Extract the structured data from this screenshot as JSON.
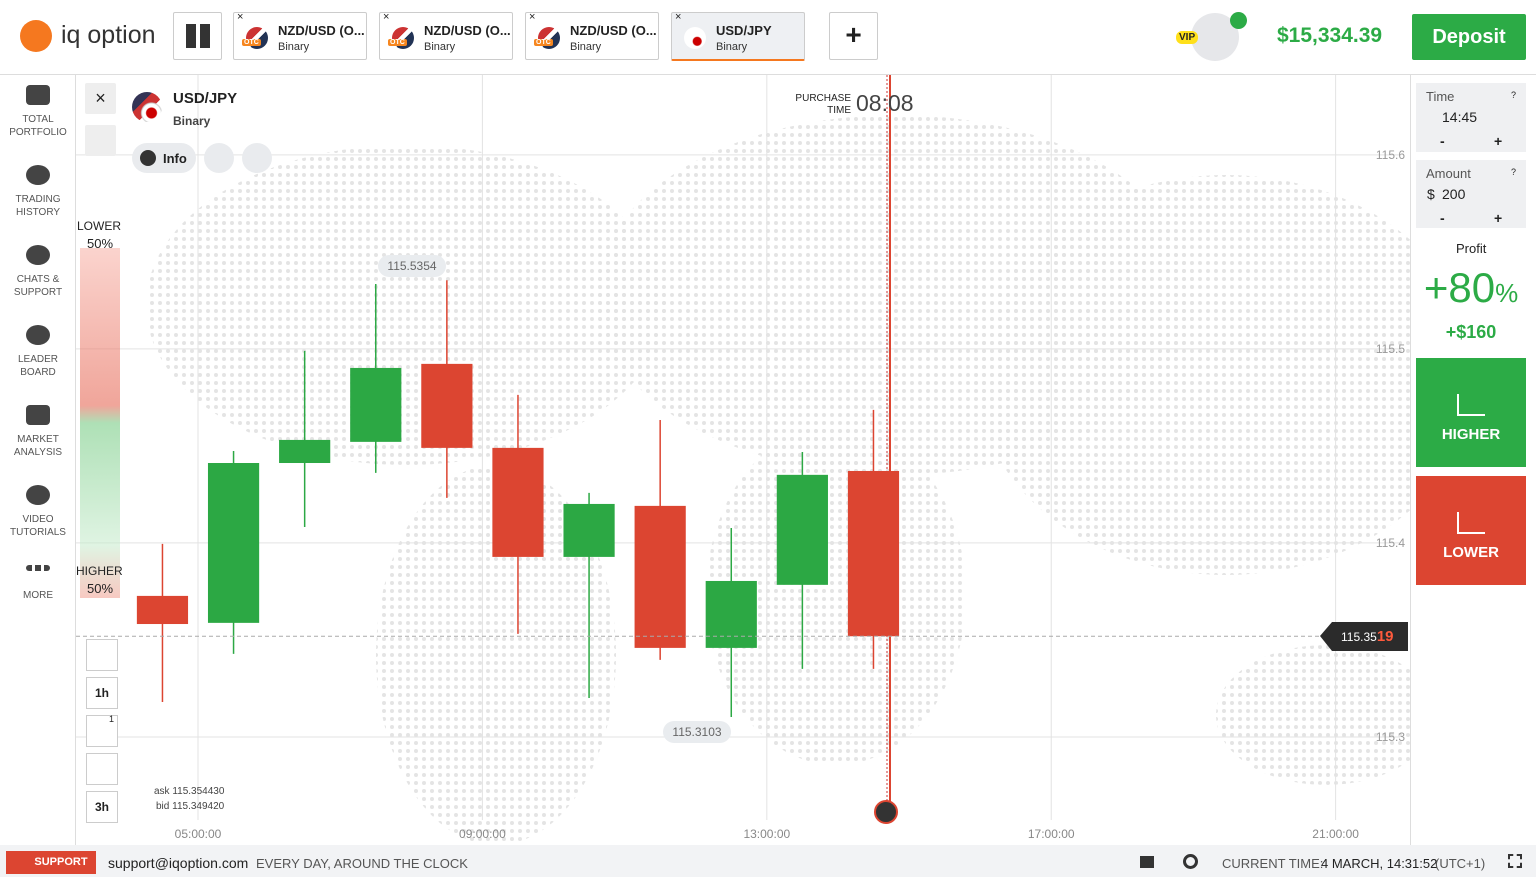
{
  "header": {
    "logo": "iq option",
    "tabs": [
      {
        "title": "NZD/USD (O...",
        "sub": "Binary"
      },
      {
        "title": "NZD/USD (O...",
        "sub": "Binary"
      },
      {
        "title": "NZD/USD (O...",
        "sub": "Binary"
      },
      {
        "title": "USD/JPY",
        "sub": "Binary"
      }
    ],
    "otc": "OTC",
    "plus": "+",
    "vip": "VIP",
    "balance": "$15,334.39",
    "deposit": "Deposit"
  },
  "sidebar": [
    {
      "lines": [
        "TOTAL",
        "PORTFOLIO"
      ]
    },
    {
      "lines": [
        "TRADING",
        "HISTORY"
      ]
    },
    {
      "lines": [
        "CHATS &",
        "SUPPORT"
      ]
    },
    {
      "lines": [
        "LEADER",
        "BOARD"
      ]
    },
    {
      "lines": [
        "MARKET",
        "ANALYSIS"
      ]
    },
    {
      "lines": [
        "VIDEO",
        "TUTORIALS"
      ]
    },
    {
      "lines": [
        "MORE"
      ]
    }
  ],
  "asset": {
    "name": "USD/JPY",
    "type": "Binary",
    "info": "Info"
  },
  "sentiment": {
    "lower": "LOWER",
    "lower_pct": "50%",
    "higher": "HIGHER",
    "higher_pct": "50%"
  },
  "purchase": {
    "label": [
      "PURCHASE",
      "TIME"
    ],
    "time": "08:08"
  },
  "tools": {
    "timeframe": "1h",
    "drawings_badge": "1",
    "period": "3h",
    "ask": "ask 115.354430",
    "bid": "bid 115.349420"
  },
  "chart": {
    "type": "candlestick",
    "up_color": "#2ca844",
    "down_color": "#dc4531",
    "x": [
      4.5,
      5.5,
      6.5,
      7.5,
      8.5,
      9.5,
      10.5,
      11.5,
      12.5,
      13.5,
      14.5
    ],
    "open": [
      115.3727,
      115.3588,
      115.4412,
      115.4521,
      115.4923,
      115.449,
      115.3928,
      115.4191,
      115.3459,
      115.3784,
      115.4371
    ],
    "high": [
      115.3995,
      115.4474,
      115.499,
      115.5335,
      115.5354,
      115.4763,
      115.4258,
      115.4634,
      115.4077,
      115.4469,
      115.4686
    ],
    "low": [
      115.318,
      115.3428,
      115.4082,
      115.4361,
      115.4232,
      115.3531,
      115.3201,
      115.3397,
      115.3103,
      115.3351,
      115.3351
    ],
    "close": [
      115.3582,
      115.4412,
      115.4531,
      115.4902,
      115.449,
      115.3928,
      115.4201,
      115.3459,
      115.3804,
      115.4351,
      115.3519
    ],
    "ylim": [
      115.2443,
      115.6412
    ],
    "yticks": [
      115.3,
      115.4,
      115.5,
      115.6
    ],
    "xlim": [
      3.284,
      22.046
    ],
    "xticks": [
      {
        "value": 5,
        "label": "05:00:00"
      },
      {
        "value": 9,
        "label": "09:00:00"
      },
      {
        "value": 13,
        "label": "13:00:00"
      },
      {
        "value": 17,
        "label": "17:00:00"
      },
      {
        "value": 21,
        "label": "21:00:00"
      }
    ],
    "grid": true,
    "high_label": "115.5354",
    "low_label": "115.3103",
    "price_main": "115.35",
    "price_tail": "19"
  },
  "panel": {
    "time_label": "Time",
    "time": "14:45",
    "minus": "-",
    "plus": "+",
    "amount_label": "Amount",
    "currency": "$",
    "amount": "200",
    "profit_label": "Profit",
    "profit": "+80",
    "profit_unit": "%",
    "profit_amount": "+$160",
    "higher": "HIGHER",
    "lower": "LOWER",
    "help": "?"
  },
  "footer": {
    "support": "SUPPORT",
    "email": "support@iqoption.com",
    "hours": "EVERY DAY, AROUND THE CLOCK",
    "time_label": "CURRENT TIME:",
    "time": "4 MARCH, 14:31:52",
    "tz": "(UTC+1)"
  }
}
